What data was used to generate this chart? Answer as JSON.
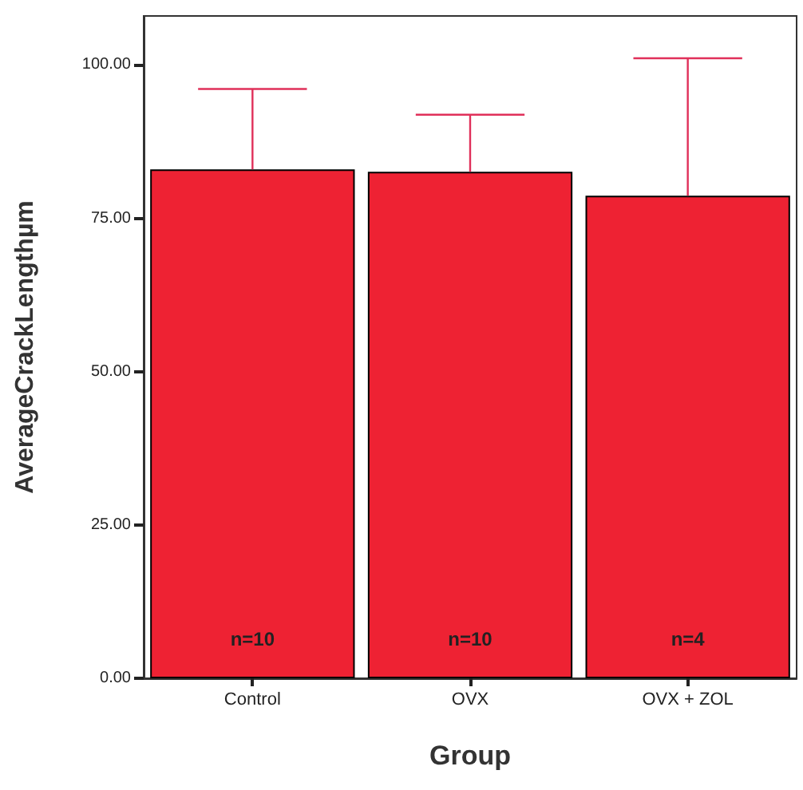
{
  "chart_data": {
    "type": "bar",
    "xlabel": "Group",
    "ylabel": "AverageCrackLengthµm",
    "categories": [
      "Control",
      "OVX",
      "OVX + ZOL"
    ],
    "values": [
      83.0,
      82.6,
      78.7
    ],
    "color": "#ee2233",
    "errors": [
      [
        83.0,
        96.1
      ],
      [
        82.6,
        91.9
      ],
      [
        78.7,
        101.1
      ]
    ],
    "ylim": [
      0,
      108
    ],
    "yticks": [
      {
        "value": 0,
        "label": "0.00"
      },
      {
        "value": 25,
        "label": "25.00"
      },
      {
        "value": 50,
        "label": "50.00"
      },
      {
        "value": 75,
        "label": "75.00"
      },
      {
        "value": 100,
        "label": "100.00"
      }
    ],
    "annotations": [
      "n=10",
      "n=10",
      "n=4"
    ],
    "grid": false
  }
}
